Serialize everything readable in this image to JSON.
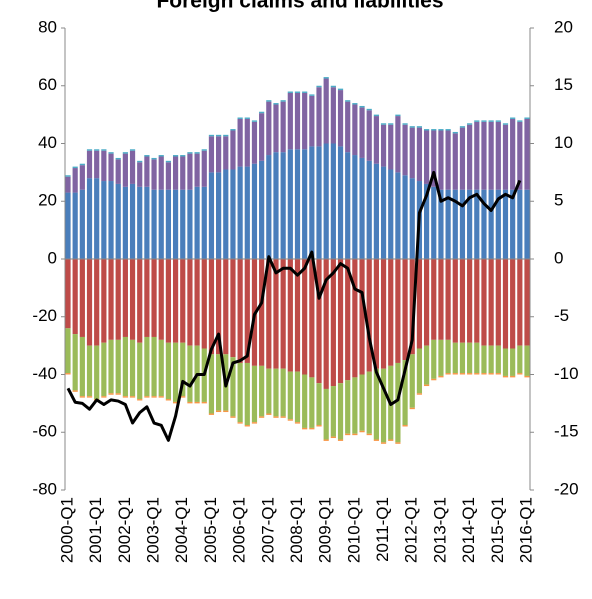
{
  "chart_data": {
    "type": "stacked_bar_line",
    "title": "Foreign claims and liabilities",
    "categories": [
      "2000-Q1",
      null,
      null,
      null,
      "2001-Q1",
      null,
      null,
      null,
      "2002-Q1",
      null,
      null,
      null,
      "2003-Q1",
      null,
      null,
      null,
      "2004-Q1",
      null,
      null,
      null,
      "2005-Q1",
      null,
      null,
      null,
      "2006-Q1",
      null,
      null,
      null,
      "2007-Q1",
      null,
      null,
      null,
      "2008-Q1",
      null,
      null,
      null,
      "2009-Q1",
      null,
      null,
      null,
      "2010-Q1",
      null,
      null,
      null,
      "2011-Q1",
      null,
      null,
      null,
      "2012-Q1",
      null,
      null,
      null,
      "2013-Q1",
      null,
      null,
      null,
      "2014-Q1",
      null,
      null,
      null,
      "2015-Q1",
      null,
      null,
      null,
      "2016-Q1"
    ],
    "series": [
      {
        "color": "#4a7ebb",
        "values": [
          23,
          23,
          24,
          28,
          28,
          27,
          27,
          26,
          25,
          26,
          25,
          25,
          24,
          24,
          24,
          24,
          24,
          24,
          25,
          25,
          30,
          30,
          31,
          31,
          32,
          32,
          33,
          34,
          36,
          37,
          37,
          38,
          38,
          38,
          39,
          39,
          40,
          40,
          39,
          37,
          36,
          35,
          34,
          33,
          32,
          31,
          30,
          29,
          28,
          27,
          26,
          25,
          24,
          24,
          24,
          24,
          24,
          24,
          24,
          24,
          24,
          24,
          24,
          24,
          24
        ]
      },
      {
        "color": "#8064a2",
        "values": [
          5.5,
          8.5,
          8.5,
          9.5,
          9.5,
          10.5,
          9.5,
          8.5,
          11.5,
          11.5,
          8.5,
          10.5,
          10.5,
          11.5,
          9.5,
          11.5,
          11.5,
          12.5,
          11.5,
          12.5,
          12.5,
          12.5,
          11.5,
          13.5,
          16.5,
          16.5,
          14.5,
          16.5,
          18.5,
          16.5,
          17.5,
          19.5,
          19.5,
          19.5,
          17.5,
          20.5,
          22.5,
          19.5,
          19.5,
          17.5,
          17.5,
          17.5,
          17.5,
          16.5,
          14.5,
          15.5,
          19.5,
          17.5,
          17.5,
          18.5,
          18.5,
          19.5,
          20.5,
          20.5,
          19.5,
          21.5,
          22.5,
          23.5,
          23.5,
          23.5,
          23.5,
          22.5,
          24.5,
          23.5,
          24.5
        ]
      },
      {
        "color": "#4bacc6",
        "values": [
          0.5,
          0.5,
          0.5,
          0.5,
          0.5,
          0.5,
          0.5,
          0.5,
          0.5,
          0.5,
          0.5,
          0.5,
          0.5,
          0.5,
          0.5,
          0.5,
          0.5,
          0.5,
          0.5,
          0.5,
          0.5,
          0.5,
          0.5,
          0.5,
          0.5,
          0.5,
          0.5,
          0.5,
          0.5,
          0.5,
          0.5,
          0.5,
          0.5,
          0.5,
          0.5,
          0.5,
          0.5,
          0.5,
          0.5,
          0.5,
          0.5,
          0.5,
          0.5,
          0.5,
          0.5,
          0.5,
          0.5,
          0.5,
          0.5,
          0.5,
          0.5,
          0.5,
          0.5,
          0.5,
          0.5,
          0.5,
          0.5,
          0.5,
          0.5,
          0.5,
          0.5,
          0.5,
          0.5,
          0.5,
          0.5
        ]
      },
      {
        "color": "#be4b48",
        "values": [
          -24,
          -26,
          -27,
          -30,
          -30,
          -29,
          -28,
          -28,
          -27,
          -28,
          -29,
          -27,
          -27,
          -28,
          -29,
          -29,
          -29,
          -30,
          -30,
          -31,
          -33,
          -33,
          -33,
          -34,
          -36,
          -36,
          -37,
          -37,
          -38,
          -38,
          -38,
          -39,
          -39,
          -40,
          -41,
          -43,
          -45,
          -44,
          -43,
          -42,
          -41,
          -40,
          -39,
          -38,
          -38,
          -37,
          -36,
          -35,
          -33,
          -31,
          -30,
          -28,
          -28,
          -28,
          -29,
          -29,
          -29,
          -29,
          -30,
          -30,
          -30,
          -31,
          -31,
          -30,
          -30
        ]
      },
      {
        "color": "#9bbb59",
        "values": [
          -15.5,
          -19.5,
          -20.5,
          -17.5,
          -18.5,
          -18.5,
          -18.5,
          -18.5,
          -20.5,
          -19.5,
          -19.5,
          -20.5,
          -20.5,
          -19.5,
          -19.5,
          -20.5,
          -18.5,
          -19.5,
          -19.5,
          -18.5,
          -20.5,
          -19.5,
          -19.5,
          -20.5,
          -20.5,
          -21.5,
          -19.5,
          -17.5,
          -15.5,
          -16.5,
          -16.5,
          -16.5,
          -17.5,
          -18.5,
          -17.5,
          -14.5,
          -17.5,
          -17.5,
          -19.5,
          -18.5,
          -19.5,
          -19.5,
          -21.5,
          -24.5,
          -25.5,
          -25.5,
          -27.5,
          -22.5,
          -18.5,
          -15.5,
          -13.5,
          -13.5,
          -12.5,
          -11.5,
          -10.5,
          -10.5,
          -10.5,
          -10.5,
          -9.5,
          -9.5,
          -9.5,
          -9.5,
          -9.5,
          -9.5,
          -10.5
        ]
      },
      {
        "color": "#f79646",
        "values": [
          -0.5,
          -0.5,
          -0.5,
          -0.5,
          -0.5,
          -0.5,
          -0.5,
          -0.5,
          -0.5,
          -0.5,
          -0.5,
          -0.5,
          -0.5,
          -0.5,
          -0.5,
          -0.5,
          -0.5,
          -0.5,
          -0.5,
          -0.5,
          -0.5,
          -0.5,
          -0.5,
          -0.5,
          -0.5,
          -0.5,
          -0.5,
          -0.5,
          -0.5,
          -0.5,
          -0.5,
          -0.5,
          -0.5,
          -0.5,
          -0.5,
          -0.5,
          -0.5,
          -0.5,
          -0.5,
          -0.5,
          -0.5,
          -0.5,
          -0.5,
          -0.5,
          -0.5,
          -0.5,
          -0.5,
          -0.5,
          -0.5,
          -0.5,
          -0.5,
          -0.5,
          -0.5,
          -0.5,
          -0.5,
          -0.5,
          -0.5,
          -0.5,
          -0.5,
          -0.5,
          -0.5,
          -0.5,
          -0.5,
          -0.5,
          -0.5
        ]
      },
      {
        "color": "#000000",
        "axis": "y2",
        "kind": "line",
        "values": [
          -11.2,
          -12.4,
          -12.5,
          -13,
          -12.2,
          -12.6,
          -12.2,
          -12.3,
          -12.6,
          -14.2,
          -13.3,
          -12.8,
          -14.2,
          -14.4,
          -15.7,
          -13.6,
          -10.6,
          -11,
          -10,
          -10,
          -7.8,
          -6.5,
          -11,
          -9,
          -8.8,
          -8.4,
          -4.8,
          -3.8,
          0.2,
          -1.2,
          -0.8,
          -0.8,
          -1.4,
          -0.8,
          0.6,
          -3.4,
          -1.8,
          -1.2,
          -0.4,
          -0.8,
          -2.6,
          -2.9,
          -6.8,
          -9.8,
          -11.2,
          -12.6,
          -12.2,
          -9.6,
          -7,
          4,
          5.5,
          7.5,
          5,
          5.3,
          5,
          4.6,
          5.3,
          5.6,
          4.8,
          4.2,
          5.2,
          5.6,
          5.3,
          6.8,
          null
        ]
      }
    ],
    "ylim": [
      -80,
      80
    ],
    "yticks": [
      -80,
      -60,
      -40,
      -20,
      0,
      20,
      40,
      60,
      80
    ],
    "y2lim": [
      -20,
      20
    ],
    "y2ticks": [
      -20,
      -15,
      -10,
      -5,
      0,
      5,
      10,
      15,
      20
    ]
  }
}
